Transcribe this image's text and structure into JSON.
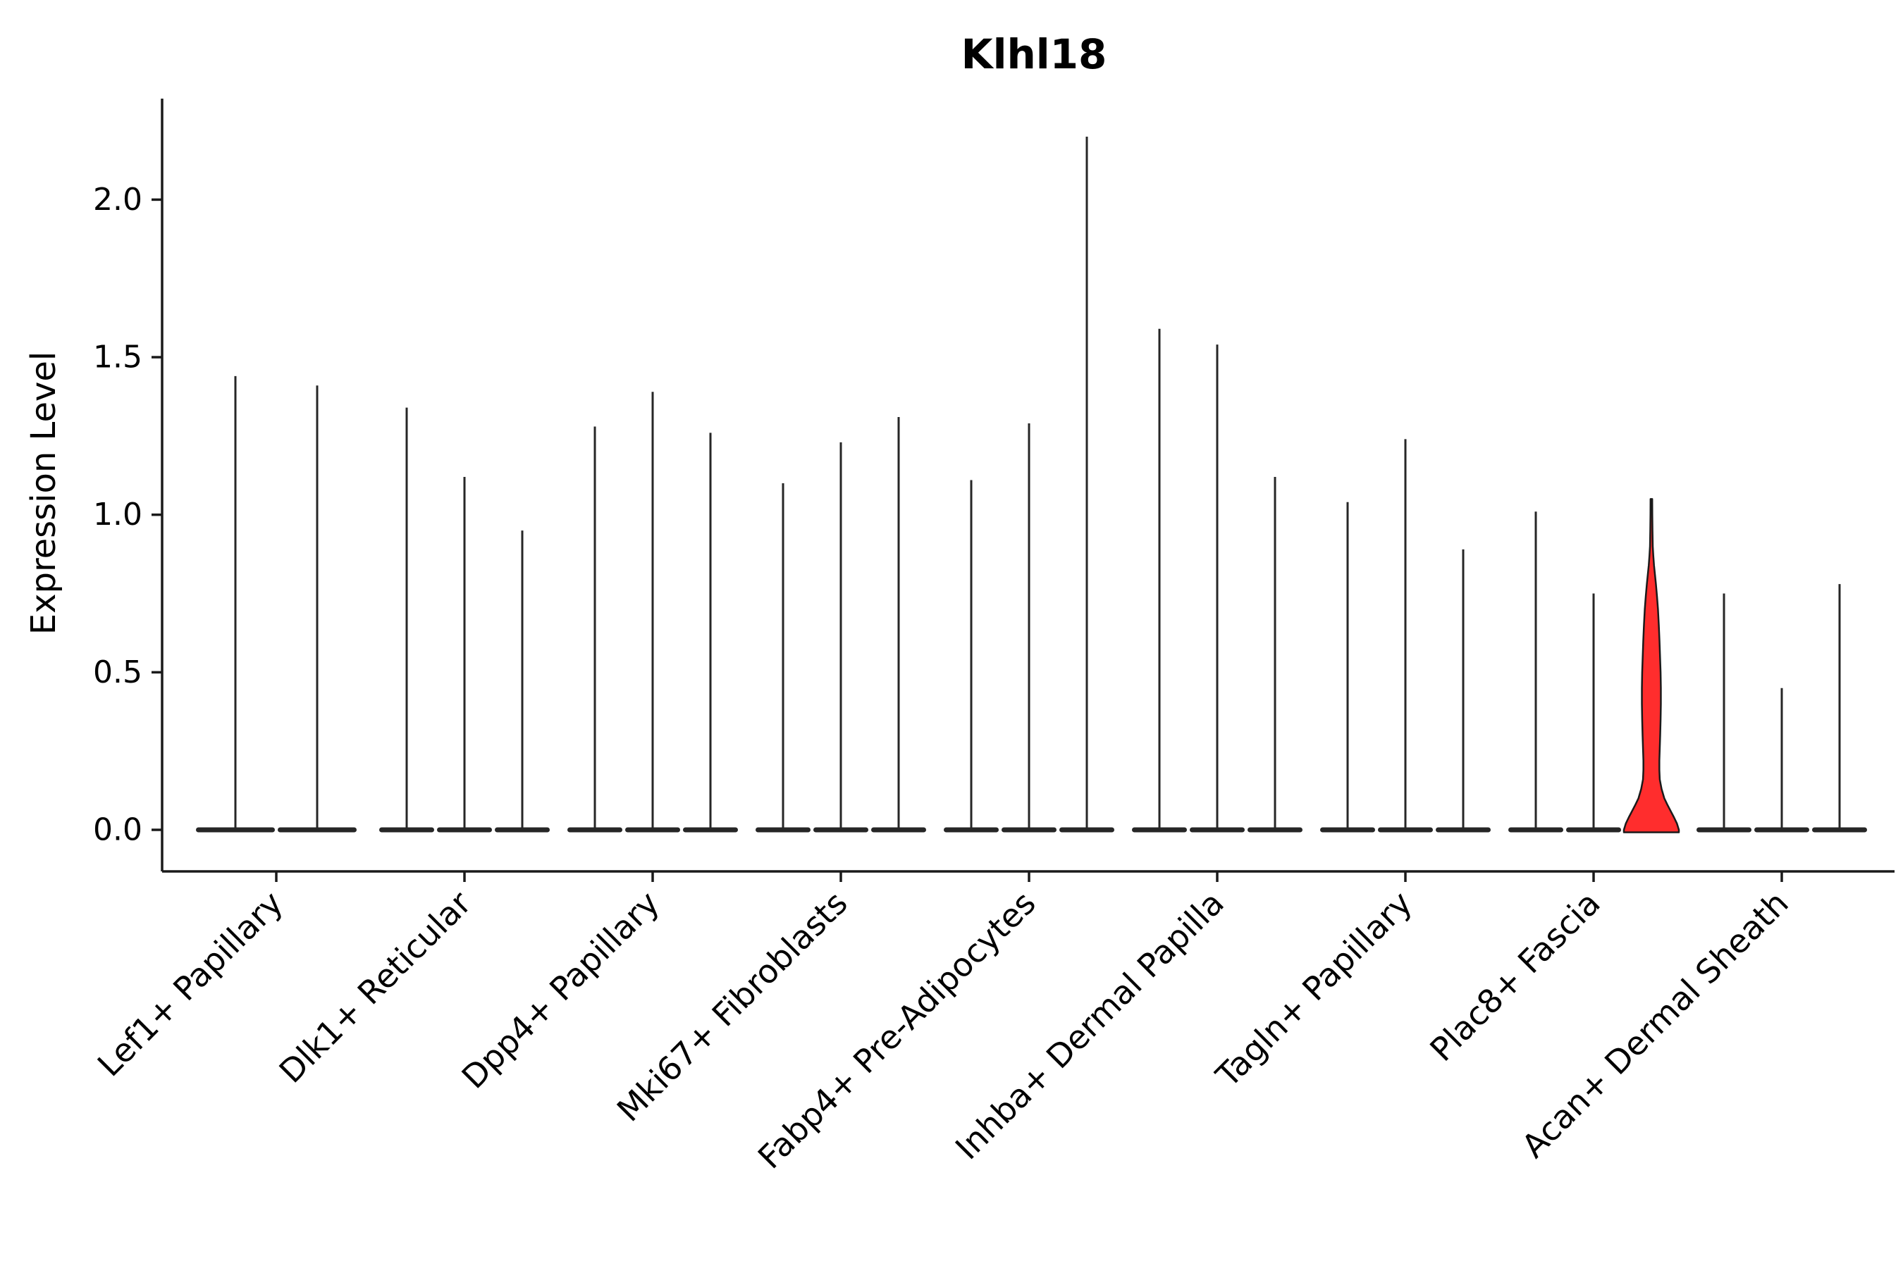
{
  "figure": {
    "title": "Klhl18",
    "y_axis_label": "Expression Level"
  },
  "chart_data": {
    "type": "violin",
    "title": "Klhl18",
    "xlabel": "",
    "ylabel": "Expression Level",
    "ylim": [
      -0.08,
      2.32
    ],
    "yticks": [
      0.0,
      0.5,
      1.0,
      1.5,
      2.0
    ],
    "grid": false,
    "legend": "none",
    "axis_color": "#1a1a1a",
    "violin_color": "#262626",
    "highlight_color": "#ff2d2d",
    "description": "Violin plot of Klhl18 expression; most violins collapse to a flat base at 0 with a thin spike reaching the listed maximum expression value. One violin (Plac8+ Fascia group, third violin) is highlighted in red with a visible density body.",
    "groups": [
      {
        "label": "Lef1+ Papillary",
        "violin_maxima": [
          1.44,
          1.41
        ]
      },
      {
        "label": "Dlk1+ Reticular",
        "violin_maxima": [
          1.34,
          1.12,
          0.95
        ]
      },
      {
        "label": "Dpp4+ Papillary",
        "violin_maxima": [
          1.28,
          1.39,
          1.26
        ]
      },
      {
        "label": "Mki67+ Fibroblasts",
        "violin_maxima": [
          1.1,
          1.23,
          1.31
        ]
      },
      {
        "label": "Fabp4+ Pre-Adipocytes",
        "violin_maxima": [
          1.11,
          1.29,
          2.2
        ]
      },
      {
        "label": "Inhba+ Dermal Papilla",
        "violin_maxima": [
          1.59,
          1.54,
          1.12
        ]
      },
      {
        "label": "Tagln+ Papillary",
        "violin_maxima": [
          1.04,
          1.24,
          0.89
        ]
      },
      {
        "label": "Plac8+ Fascia",
        "violin_maxima": [
          1.01,
          0.75,
          1.05
        ],
        "highlighted_violin_index": 2
      },
      {
        "label": "Acan+ Dermal Sheath",
        "violin_maxima": [
          0.75,
          0.45,
          0.78
        ]
      }
    ],
    "highlighted_violin": {
      "group": "Plac8+ Fascia",
      "index_in_group": 2,
      "max": 1.05,
      "fill": "#ff2d2d",
      "profile": [
        [
          0.0,
          1.0
        ],
        [
          0.02,
          0.93
        ],
        [
          0.04,
          0.82
        ],
        [
          0.06,
          0.7
        ],
        [
          0.08,
          0.58
        ],
        [
          0.1,
          0.47
        ],
        [
          0.13,
          0.37
        ],
        [
          0.16,
          0.305
        ],
        [
          0.19,
          0.29
        ],
        [
          0.22,
          0.29
        ],
        [
          0.26,
          0.305
        ],
        [
          0.3,
          0.32
        ],
        [
          0.35,
          0.335
        ],
        [
          0.4,
          0.345
        ],
        [
          0.45,
          0.345
        ],
        [
          0.5,
          0.335
        ],
        [
          0.55,
          0.315
        ],
        [
          0.6,
          0.295
        ],
        [
          0.65,
          0.27
        ],
        [
          0.7,
          0.24
        ],
        [
          0.74,
          0.205
        ],
        [
          0.78,
          0.165
        ],
        [
          0.81,
          0.13
        ],
        [
          0.84,
          0.095
        ],
        [
          0.87,
          0.07
        ],
        [
          0.9,
          0.05
        ],
        [
          0.95,
          0.04
        ],
        [
          1.0,
          0.033
        ],
        [
          1.05,
          0.03
        ]
      ]
    }
  }
}
